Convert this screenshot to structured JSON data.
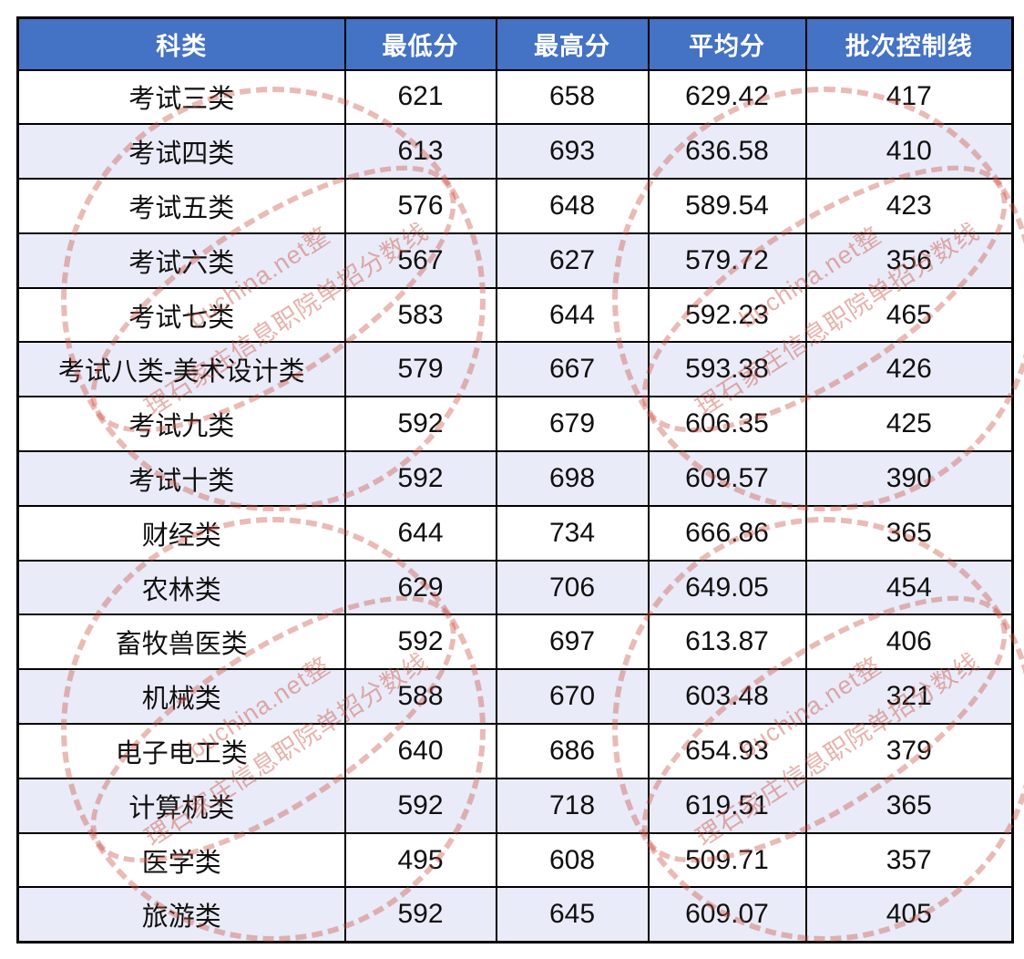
{
  "chart_data": {
    "type": "table",
    "columns": [
      "科类",
      "最低分",
      "最高分",
      "平均分",
      "批次控制线"
    ],
    "rows": [
      [
        "考试三类",
        621,
        658,
        629.42,
        417
      ],
      [
        "考试四类",
        613,
        693,
        636.58,
        410
      ],
      [
        "考试五类",
        576,
        648,
        589.54,
        423
      ],
      [
        "考试六类",
        567,
        627,
        579.72,
        356
      ],
      [
        "考试七类",
        583,
        644,
        592.23,
        465
      ],
      [
        "考试八类-美术设计类",
        579,
        667,
        593.38,
        426
      ],
      [
        "考试九类",
        592,
        679,
        606.35,
        425
      ],
      [
        "考试十类",
        592,
        698,
        609.57,
        390
      ],
      [
        "财经类",
        644,
        734,
        666.86,
        365
      ],
      [
        "农林类",
        629,
        706,
        649.05,
        454
      ],
      [
        "畜牧兽医类",
        592,
        697,
        613.87,
        406
      ],
      [
        "机械类",
        588,
        670,
        603.48,
        321
      ],
      [
        "电子电工类",
        640,
        686,
        654.93,
        379
      ],
      [
        "计算机类",
        592,
        718,
        619.51,
        365
      ],
      [
        "医学类",
        495,
        608,
        509.71,
        357
      ],
      [
        "旅游类",
        592,
        645,
        609.07,
        405
      ]
    ]
  },
  "watermark": {
    "line1": "buchina.net整",
    "line2": "理石家庄信息职院单招分数线"
  },
  "colors": {
    "header_bg": "#4472C4",
    "header_text": "#FFFFFF",
    "row_alt_bg": "#E9EBF8",
    "border": "#000000",
    "watermark": "#CA5446"
  }
}
